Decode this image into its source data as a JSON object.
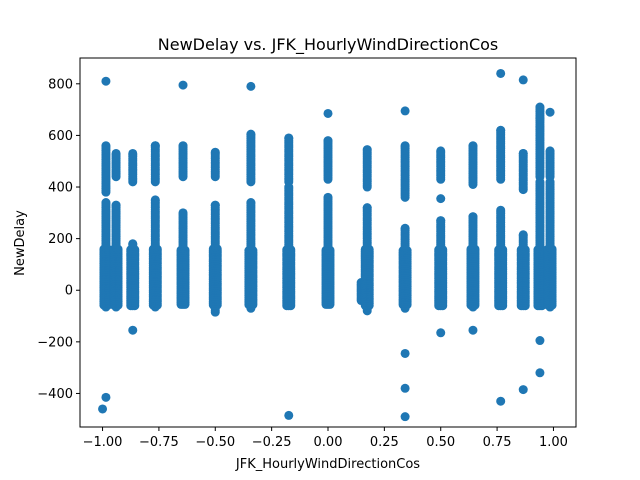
{
  "chart_data": {
    "type": "scatter",
    "title": "NewDelay vs. JFK_HourlyWindDirectionCos",
    "xlabel": "JFK_HourlyWindDirectionCos",
    "ylabel": "NewDelay",
    "xlim": [
      -1.1,
      1.1
    ],
    "ylim": [
      -530,
      900
    ],
    "xticks": [
      -1.0,
      -0.75,
      -0.5,
      -0.25,
      0.0,
      0.25,
      0.5,
      0.75,
      1.0
    ],
    "xtick_labels": [
      "−1.00",
      "−0.75",
      "−0.50",
      "−0.25",
      "0.00",
      "0.25",
      "0.50",
      "0.75",
      "1.00"
    ],
    "yticks": [
      -400,
      -200,
      0,
      200,
      400,
      600,
      800
    ],
    "ytick_labels": [
      "−400",
      "−200",
      "0",
      "200",
      "400",
      "600",
      "800"
    ],
    "marker_color": "#1f77b4",
    "grid": false,
    "columns": [
      {
        "x": -0.985,
        "y_min": -65,
        "y_max": 560,
        "bands": [
          [
            -65,
            340
          ],
          [
            380,
            560
          ]
        ]
      },
      {
        "x": -0.94,
        "y_min": -65,
        "y_max": 530,
        "bands": [
          [
            -65,
            330
          ],
          [
            440,
            530
          ]
        ]
      },
      {
        "x": -0.866,
        "y_min": -60,
        "y_max": 530,
        "bands": [
          [
            -60,
            180
          ],
          [
            420,
            530
          ]
        ]
      },
      {
        "x": -0.766,
        "y_min": -65,
        "y_max": 560,
        "bands": [
          [
            -65,
            350
          ],
          [
            420,
            560
          ]
        ]
      },
      {
        "x": -0.643,
        "y_min": -55,
        "y_max": 560,
        "bands": [
          [
            -55,
            300
          ],
          [
            440,
            560
          ]
        ]
      },
      {
        "x": -0.5,
        "y_min": -85,
        "y_max": 535,
        "bands": [
          [
            -85,
            330
          ],
          [
            440,
            535
          ]
        ]
      },
      {
        "x": -0.342,
        "y_min": -70,
        "y_max": 605,
        "bands": [
          [
            -70,
            340
          ],
          [
            420,
            605
          ]
        ]
      },
      {
        "x": -0.174,
        "y_min": -60,
        "y_max": 590,
        "bands": [
          [
            -60,
            400
          ],
          [
            420,
            590
          ]
        ]
      },
      {
        "x": 0.0,
        "y_min": -55,
        "y_max": 580,
        "bands": [
          [
            -55,
            360
          ],
          [
            430,
            580
          ]
        ]
      },
      {
        "x": 0.156,
        "y_min": -40,
        "y_max": 30,
        "bands": [
          [
            -40,
            30
          ]
        ]
      },
      {
        "x": 0.174,
        "y_min": -80,
        "y_max": 545,
        "bands": [
          [
            -80,
            320
          ],
          [
            400,
            545
          ]
        ]
      },
      {
        "x": 0.342,
        "y_min": -70,
        "y_max": 560,
        "bands": [
          [
            -70,
            240
          ],
          [
            360,
            560
          ]
        ]
      },
      {
        "x": 0.5,
        "y_min": -60,
        "y_max": 540,
        "bands": [
          [
            -60,
            270
          ],
          [
            430,
            540
          ]
        ]
      },
      {
        "x": 0.643,
        "y_min": -65,
        "y_max": 560,
        "bands": [
          [
            -65,
            285
          ],
          [
            410,
            560
          ]
        ]
      },
      {
        "x": 0.766,
        "y_min": -60,
        "y_max": 620,
        "bands": [
          [
            -60,
            310
          ],
          [
            430,
            620
          ]
        ]
      },
      {
        "x": 0.866,
        "y_min": -60,
        "y_max": 530,
        "bands": [
          [
            -60,
            215
          ],
          [
            390,
            530
          ]
        ]
      },
      {
        "x": 0.94,
        "y_min": -60,
        "y_max": 710,
        "bands": [
          [
            -60,
            420
          ],
          [
            440,
            710
          ]
        ]
      },
      {
        "x": 0.985,
        "y_min": -65,
        "y_max": 540,
        "bands": [
          [
            -65,
            420
          ],
          [
            440,
            540
          ]
        ]
      }
    ],
    "outliers": [
      {
        "x": -0.985,
        "y": 810
      },
      {
        "x": -0.985,
        "y": -415
      },
      {
        "x": -1.0,
        "y": -460
      },
      {
        "x": -0.866,
        "y": -155
      },
      {
        "x": -0.643,
        "y": 795
      },
      {
        "x": -0.342,
        "y": 790
      },
      {
        "x": -0.174,
        "y": -485
      },
      {
        "x": 0.0,
        "y": 685
      },
      {
        "x": 0.342,
        "y": 695
      },
      {
        "x": 0.342,
        "y": -245
      },
      {
        "x": 0.342,
        "y": -380
      },
      {
        "x": 0.342,
        "y": -490
      },
      {
        "x": 0.5,
        "y": -165
      },
      {
        "x": 0.5,
        "y": 355
      },
      {
        "x": 0.643,
        "y": -155
      },
      {
        "x": 0.766,
        "y": 840
      },
      {
        "x": 0.766,
        "y": -430
      },
      {
        "x": 0.866,
        "y": 815
      },
      {
        "x": 0.866,
        "y": -385
      },
      {
        "x": 0.94,
        "y": -195
      },
      {
        "x": 0.94,
        "y": -320
      },
      {
        "x": 0.94,
        "y": 665
      },
      {
        "x": 0.985,
        "y": 690
      }
    ]
  }
}
